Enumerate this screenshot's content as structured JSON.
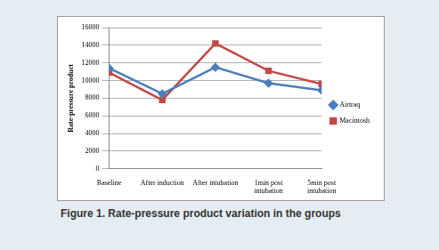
{
  "chart_data": {
    "type": "line",
    "title": "Figure 1. Rate-pressure product variation in the groups",
    "y_label": "Rate-pressure product",
    "categories": [
      "Baseline",
      "After induction",
      "After intubation",
      "1min post intubation",
      "5min post intubation"
    ],
    "series": [
      {
        "name": "Airtraq",
        "color": "#4a7ebb",
        "marker": "diamond",
        "values": [
          11400,
          8500,
          11500,
          9700,
          8900
        ]
      },
      {
        "name": "Macintosh",
        "color": "#be4b48",
        "marker": "square",
        "values": [
          10900,
          7800,
          14200,
          11100,
          9600
        ]
      }
    ],
    "ylim": [
      0,
      16000
    ],
    "yticks": [
      0,
      2000,
      4000,
      6000,
      8000,
      10000,
      12000,
      14000,
      16000
    ],
    "grid": true,
    "legend": "right"
  }
}
